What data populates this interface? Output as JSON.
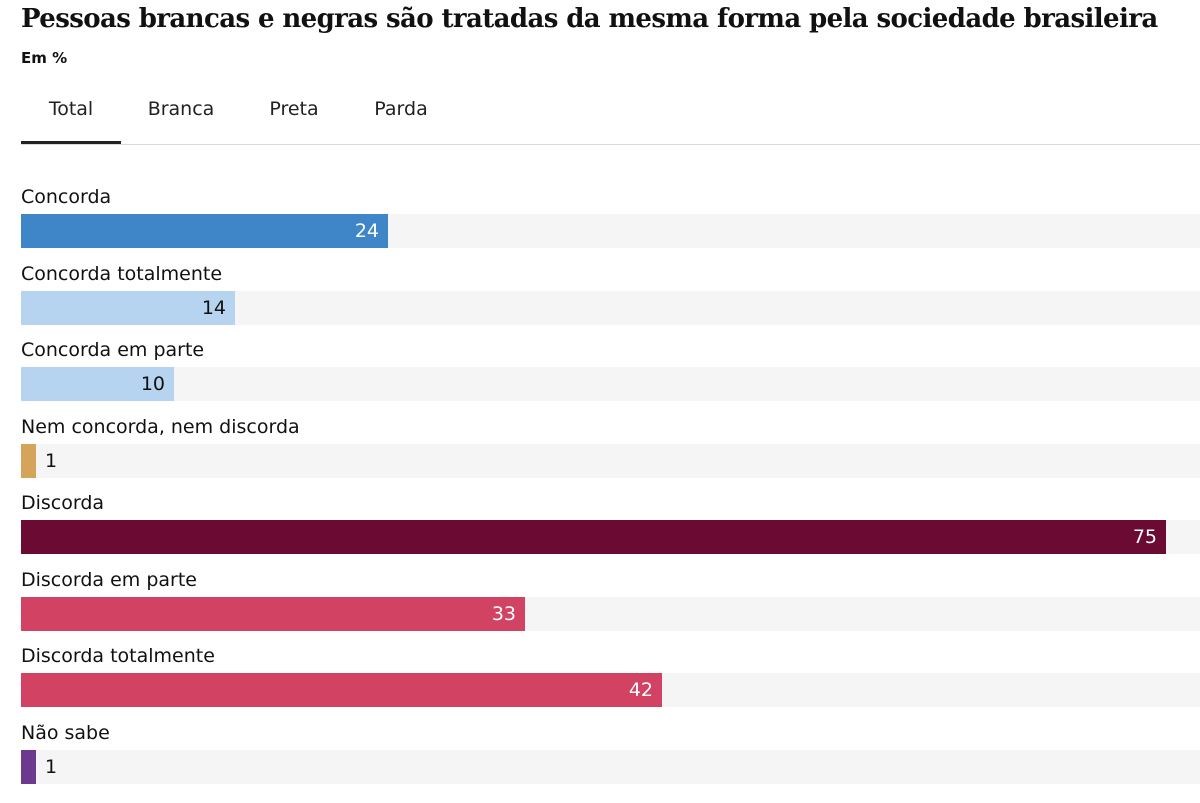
{
  "chart_data": {
    "type": "bar",
    "orientation": "horizontal",
    "title": "Pessoas brancas e negras são tratadas da mesma forma pela sociedade brasileira",
    "unit_label": "Em %",
    "tabs": [
      {
        "label": "Total",
        "active": true
      },
      {
        "label": "Branca",
        "active": false
      },
      {
        "label": "Preta",
        "active": false
      },
      {
        "label": "Parda",
        "active": false
      }
    ],
    "xlim": [
      0,
      77.2
    ],
    "categories": [
      "Concorda",
      "Concorda totalmente",
      "Concorda em parte",
      "Nem concorda, nem discorda",
      "Discorda",
      "Discorda em parte",
      "Discorda totalmente",
      "Não sabe"
    ],
    "values": [
      24,
      14,
      10,
      1,
      75,
      33,
      42,
      1
    ],
    "colors": [
      "#3f86c8",
      "#b6d4f0",
      "#b6d4f0",
      "#d4a45a",
      "#6b0a33",
      "#d24363",
      "#d24363",
      "#6b3a8e"
    ],
    "label_colors": [
      "#ffffff",
      "#111111",
      "#111111",
      "#111111",
      "#ffffff",
      "#ffffff",
      "#ffffff",
      "#111111"
    ],
    "track_color": "#f5f5f5"
  }
}
